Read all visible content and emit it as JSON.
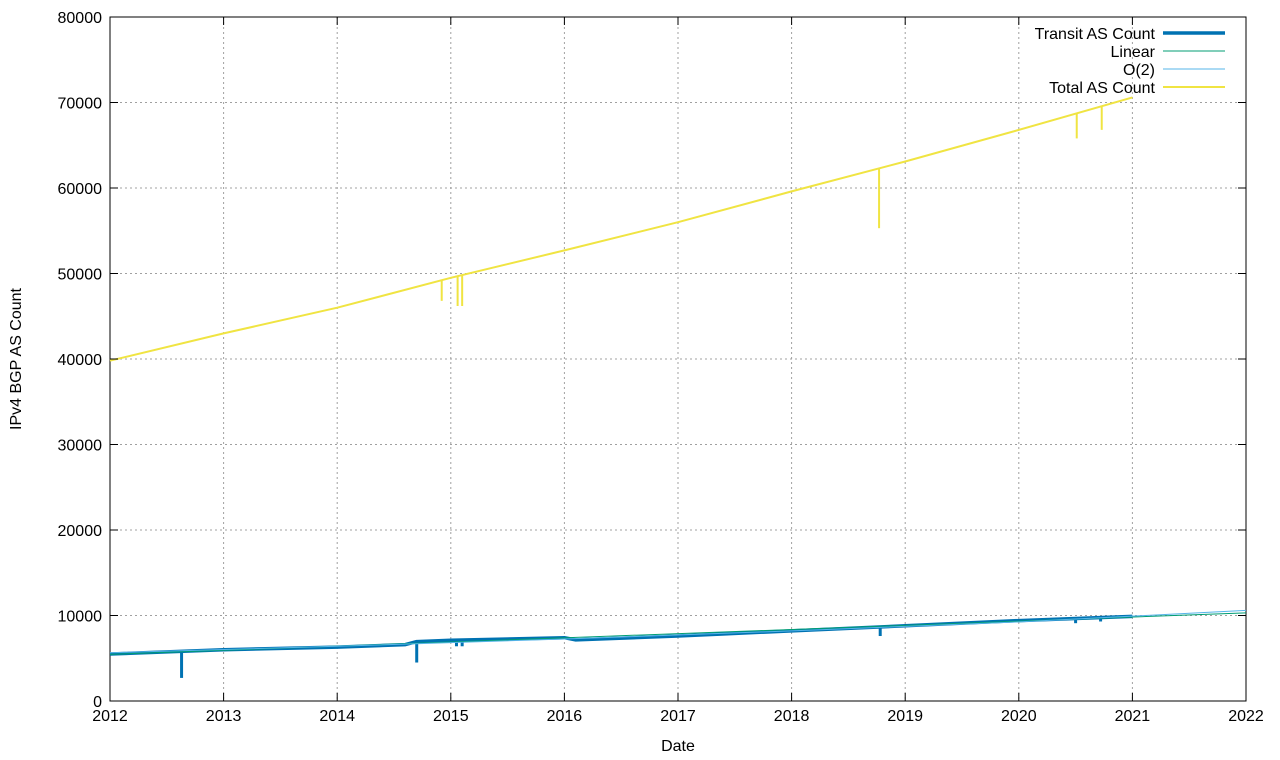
{
  "chart_data": {
    "type": "line",
    "title": "",
    "xlabel": "Date",
    "ylabel": "IPv4 BGP AS Count",
    "xlim": [
      2012,
      2022
    ],
    "ylim": [
      0,
      80000
    ],
    "x_ticks": [
      "2012",
      "2013",
      "2014",
      "2015",
      "2016",
      "2017",
      "2018",
      "2019",
      "2020",
      "2021",
      "2022"
    ],
    "y_ticks": [
      "0",
      "10000",
      "20000",
      "30000",
      "40000",
      "50000",
      "60000",
      "70000",
      "80000"
    ],
    "grid": true,
    "legend_position": "top-right",
    "series": [
      {
        "name": "Transit AS Count",
        "color": "#0072b2",
        "style": "thick",
        "points": [
          [
            2012.0,
            5500
          ],
          [
            2013.0,
            6000
          ],
          [
            2014.0,
            6300
          ],
          [
            2014.6,
            6600
          ],
          [
            2014.7,
            6950
          ],
          [
            2015.0,
            7100
          ],
          [
            2016.0,
            7400
          ],
          [
            2016.1,
            7150
          ],
          [
            2017.0,
            7600
          ],
          [
            2018.0,
            8200
          ],
          [
            2019.0,
            8800
          ],
          [
            2020.0,
            9400
          ],
          [
            2021.0,
            9900
          ]
        ],
        "dips": [
          [
            2012.63,
            2700
          ],
          [
            2014.7,
            4500
          ],
          [
            2015.05,
            6400
          ],
          [
            2015.1,
            6400
          ],
          [
            2018.78,
            7600
          ],
          [
            2020.5,
            9100
          ],
          [
            2020.72,
            9300
          ]
        ]
      },
      {
        "name": "Linear",
        "color": "#009e73",
        "style": "thin",
        "points": [
          [
            2012.0,
            5450
          ],
          [
            2022.0,
            10300
          ]
        ]
      },
      {
        "name": "O(2)",
        "color": "#56b4e9",
        "style": "thin",
        "points": [
          [
            2012.0,
            5650
          ],
          [
            2014.0,
            6400
          ],
          [
            2016.0,
            7250
          ],
          [
            2018.0,
            8200
          ],
          [
            2020.0,
            9250
          ],
          [
            2022.0,
            10600
          ]
        ]
      },
      {
        "name": "Total AS Count",
        "color": "#f0e442",
        "style": "medium",
        "points": [
          [
            2012.0,
            39800
          ],
          [
            2013.0,
            43000
          ],
          [
            2014.0,
            46000
          ],
          [
            2015.0,
            49500
          ],
          [
            2016.0,
            52700
          ],
          [
            2017.0,
            56000
          ],
          [
            2018.0,
            59600
          ],
          [
            2019.0,
            63100
          ],
          [
            2020.0,
            66800
          ],
          [
            2021.0,
            70600
          ]
        ],
        "dips": [
          [
            2014.92,
            46800
          ],
          [
            2015.06,
            46200
          ],
          [
            2015.1,
            46200
          ],
          [
            2018.77,
            55300
          ],
          [
            2020.51,
            65800
          ],
          [
            2020.73,
            66800
          ]
        ]
      }
    ]
  }
}
